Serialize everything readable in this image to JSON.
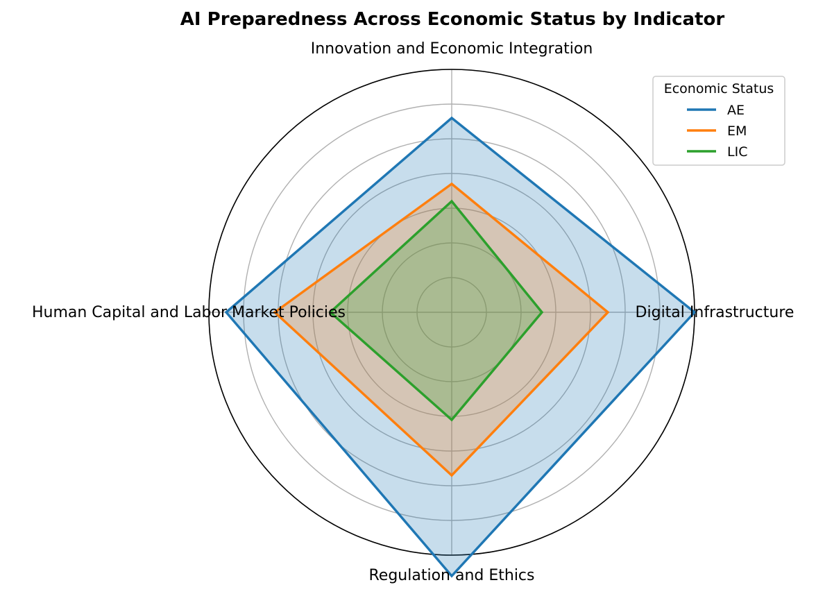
{
  "chart_data": {
    "type": "radar",
    "title": "AI Preparedness Across Economic Status by Indicator",
    "axes": [
      "Digital Infrastructure",
      "Innovation and Economic Integration",
      "Human Capital and Labor Market Policies",
      "Regulation and Ethics"
    ],
    "rlim": [
      0,
      0.7
    ],
    "grid": true,
    "legend": {
      "title": "Economic Status",
      "placement": "top-right"
    },
    "series": [
      {
        "name": "AE",
        "color": "#1f77b4",
        "values": [
          0.7,
          0.56,
          0.65,
          0.76
        ]
      },
      {
        "name": "EM",
        "color": "#ff7f0e",
        "values": [
          0.45,
          0.37,
          0.51,
          0.47
        ]
      },
      {
        "name": "LIC",
        "color": "#2ca02c",
        "values": [
          0.26,
          0.32,
          0.35,
          0.31
        ]
      }
    ]
  }
}
